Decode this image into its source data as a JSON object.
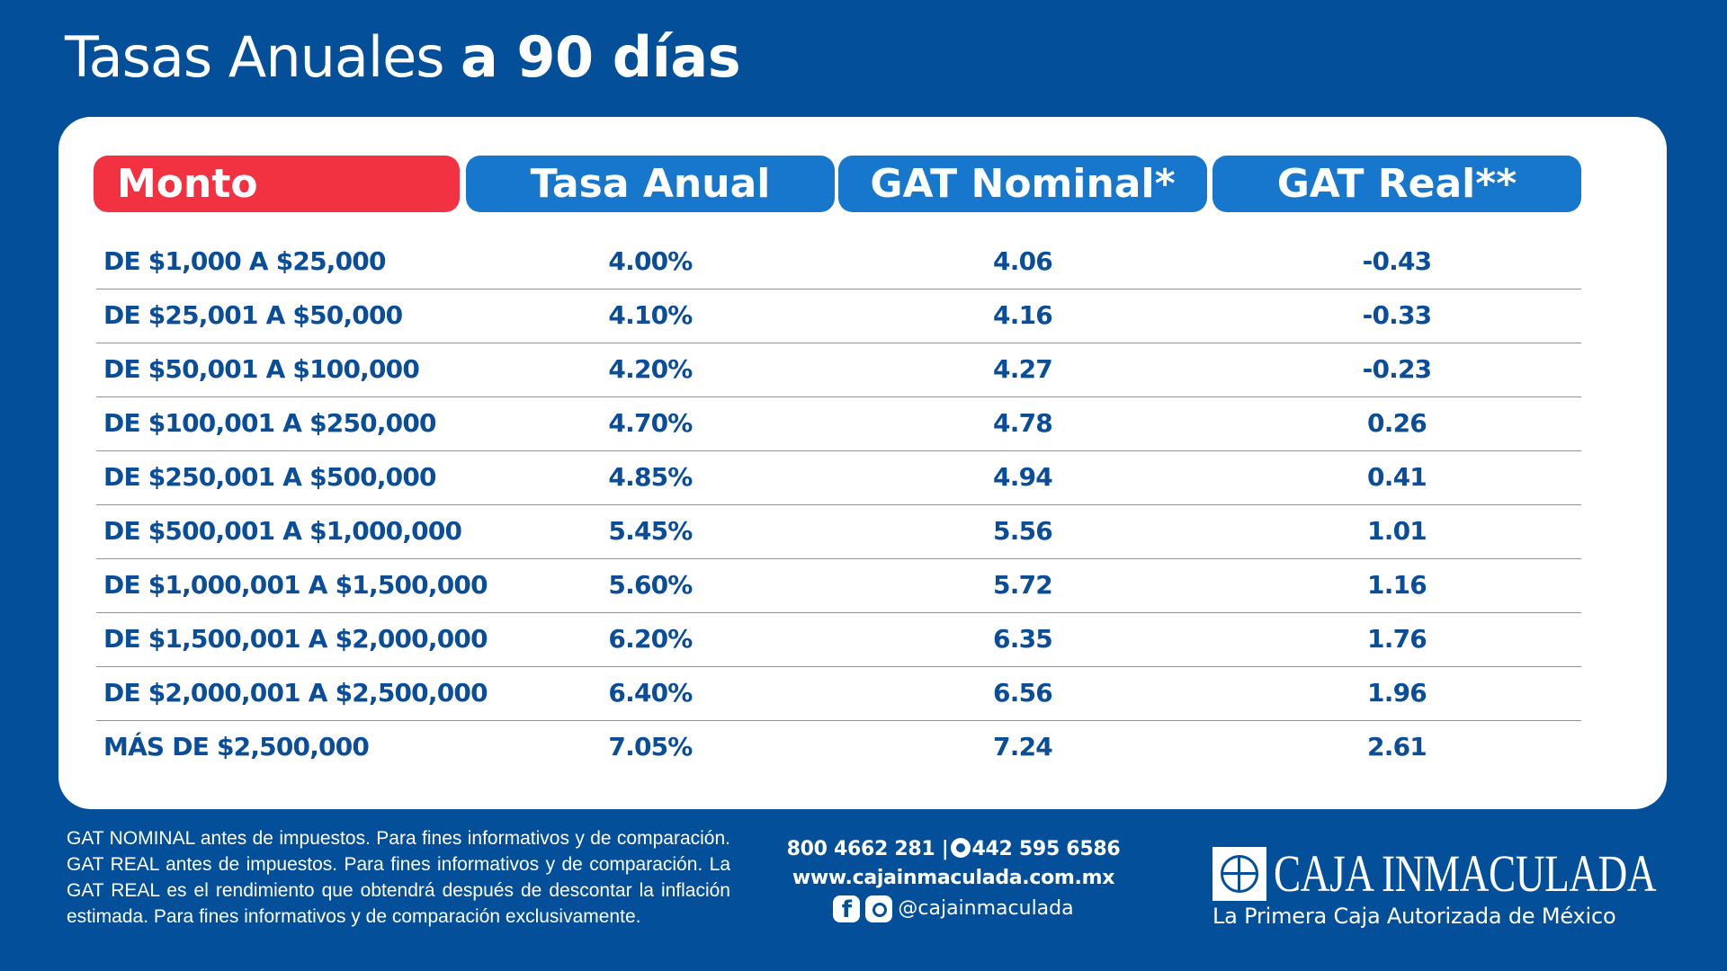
{
  "title": {
    "light": "Tasas Anuales",
    "bold": "a 90 días"
  },
  "colors": {
    "background": "#034f99",
    "header_red": "#f23141",
    "header_blue": "#1677cc",
    "text_blue": "#0a4d99"
  },
  "table": {
    "headers": [
      "Monto",
      "Tasa Anual",
      "GAT Nominal*",
      "GAT Real**"
    ],
    "rows": [
      {
        "monto": "DE $1,000 A $25,000",
        "tasa": "4.00%",
        "nominal": "4.06",
        "real": "-0.43"
      },
      {
        "monto": "DE $25,001 A $50,000",
        "tasa": "4.10%",
        "nominal": "4.16",
        "real": "-0.33"
      },
      {
        "monto": "DE $50,001 A $100,000",
        "tasa": "4.20%",
        "nominal": "4.27",
        "real": "-0.23"
      },
      {
        "monto": "DE $100,001 A $250,000",
        "tasa": "4.70%",
        "nominal": "4.78",
        "real": "0.26"
      },
      {
        "monto": "DE $250,001 A $500,000",
        "tasa": "4.85%",
        "nominal": "4.94",
        "real": "0.41"
      },
      {
        "monto": "DE $500,001 A $1,000,000",
        "tasa": "5.45%",
        "nominal": "5.56",
        "real": "1.01"
      },
      {
        "monto": "DE $1,000,001 A $1,500,000",
        "tasa": "5.60%",
        "nominal": "5.72",
        "real": "1.16"
      },
      {
        "monto": "DE $1,500,001 A $2,000,000",
        "tasa": "6.20%",
        "nominal": "6.35",
        "real": "1.76"
      },
      {
        "monto": "DE $2,000,001 A $2,500,000",
        "tasa": "6.40%",
        "nominal": "6.56",
        "real": "1.96"
      },
      {
        "monto": "MÁS DE $2,500,000",
        "tasa": "7.05%",
        "nominal": "7.24",
        "real": "2.61"
      }
    ]
  },
  "footer": {
    "disclaimer": "GAT NOMINAL antes de impuestos. Para fines informativos y de comparación. GAT REAL antes de impuestos. Para fines informativos y de comparación. La GAT REAL es el rendimiento que obtendrá después de descontar la inflación estimada. Para fines informativos y de comparación exclusivamente.",
    "phone": "800 4662 281",
    "separator": "|",
    "whatsapp": "442 595 6586",
    "website": "www.cajainmaculada.com.mx",
    "social_handle": "@cajainmaculada",
    "icons": {
      "whatsapp": "whatsapp-icon",
      "facebook": "facebook-icon",
      "instagram": "instagram-icon"
    }
  },
  "logo": {
    "name": "CAJA INMACULADA",
    "tagline": "La Primera Caja Autorizada de México"
  }
}
